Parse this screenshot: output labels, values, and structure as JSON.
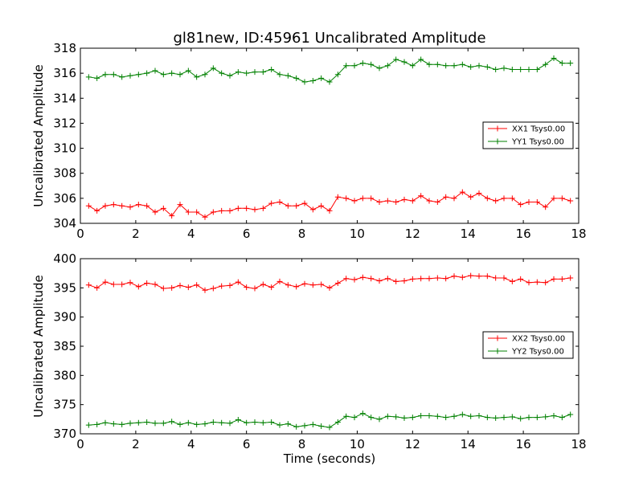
{
  "figure": {
    "title": "gl81new, ID:45961 Uncalibrated Amplitude",
    "xlabel": "Time (seconds)"
  },
  "chart_data": [
    {
      "type": "line",
      "ylabel": "Uncalibrated Amplitude",
      "xlim": [
        0,
        18
      ],
      "ylim": [
        304,
        318
      ],
      "xticks": [
        0,
        2,
        4,
        6,
        8,
        10,
        12,
        14,
        16,
        18
      ],
      "yticks": [
        304,
        306,
        308,
        310,
        312,
        314,
        316,
        318
      ],
      "grid": false,
      "legend_position": "center-right",
      "x": [
        0.3,
        0.6,
        0.9,
        1.2,
        1.5,
        1.8,
        2.1,
        2.4,
        2.7,
        3.0,
        3.3,
        3.6,
        3.9,
        4.2,
        4.5,
        4.8,
        5.1,
        5.4,
        5.7,
        6.0,
        6.3,
        6.6,
        6.9,
        7.2,
        7.5,
        7.8,
        8.1,
        8.4,
        8.7,
        9.0,
        9.3,
        9.6,
        9.9,
        10.2,
        10.5,
        10.8,
        11.1,
        11.4,
        11.7,
        12.0,
        12.3,
        12.6,
        12.9,
        13.2,
        13.5,
        13.8,
        14.1,
        14.4,
        14.7,
        15.0,
        15.3,
        15.6,
        15.9,
        16.2,
        16.5,
        16.8,
        17.1,
        17.4,
        17.7
      ],
      "series": [
        {
          "name": "XX1 Tsys0.00",
          "color": "#ff0000",
          "values": [
            305.4,
            305.0,
            305.4,
            305.5,
            305.4,
            305.3,
            305.5,
            305.4,
            304.9,
            305.2,
            304.6,
            305.5,
            304.9,
            304.9,
            304.5,
            304.9,
            305.0,
            305.0,
            305.2,
            305.2,
            305.1,
            305.2,
            305.6,
            305.7,
            305.4,
            305.4,
            305.6,
            305.1,
            305.4,
            305.0,
            306.1,
            306.0,
            305.8,
            306.0,
            306.0,
            305.7,
            305.8,
            305.7,
            305.9,
            305.8,
            306.2,
            305.8,
            305.7,
            306.1,
            306.0,
            306.5,
            306.1,
            306.4,
            306.0,
            305.8,
            306.0,
            306.0,
            305.5,
            305.7,
            305.7,
            305.3,
            306.0,
            306.0,
            305.8
          ]
        },
        {
          "name": "YY1 Tsys0.00",
          "color": "#008000",
          "values": [
            315.7,
            315.6,
            315.9,
            315.9,
            315.7,
            315.8,
            315.9,
            316.0,
            316.2,
            315.9,
            316.0,
            315.9,
            316.2,
            315.7,
            315.9,
            316.4,
            316.0,
            315.8,
            316.1,
            316.0,
            316.1,
            316.1,
            316.3,
            315.9,
            315.8,
            315.6,
            315.3,
            315.4,
            315.6,
            315.3,
            315.9,
            316.6,
            316.6,
            316.8,
            316.7,
            316.4,
            316.6,
            317.1,
            316.9,
            316.6,
            317.1,
            316.7,
            316.7,
            316.6,
            316.6,
            316.7,
            316.5,
            316.6,
            316.5,
            316.3,
            316.4,
            316.3,
            316.3,
            316.3,
            316.3,
            316.7,
            317.2,
            316.8,
            316.8
          ]
        }
      ]
    },
    {
      "type": "line",
      "ylabel": "Uncalibrated Amplitude",
      "xlabel": "Time (seconds)",
      "xlim": [
        0,
        18
      ],
      "ylim": [
        370,
        400
      ],
      "xticks": [
        0,
        2,
        4,
        6,
        8,
        10,
        12,
        14,
        16,
        18
      ],
      "yticks": [
        370,
        375,
        380,
        385,
        390,
        395,
        400
      ],
      "grid": false,
      "legend_position": "center-right",
      "x": [
        0.3,
        0.6,
        0.9,
        1.2,
        1.5,
        1.8,
        2.1,
        2.4,
        2.7,
        3.0,
        3.3,
        3.6,
        3.9,
        4.2,
        4.5,
        4.8,
        5.1,
        5.4,
        5.7,
        6.0,
        6.3,
        6.6,
        6.9,
        7.2,
        7.5,
        7.8,
        8.1,
        8.4,
        8.7,
        9.0,
        9.3,
        9.6,
        9.9,
        10.2,
        10.5,
        10.8,
        11.1,
        11.4,
        11.7,
        12.0,
        12.3,
        12.6,
        12.9,
        13.2,
        13.5,
        13.8,
        14.1,
        14.4,
        14.7,
        15.0,
        15.3,
        15.6,
        15.9,
        16.2,
        16.5,
        16.8,
        17.1,
        17.4,
        17.7
      ],
      "series": [
        {
          "name": "XX2 Tsys0.00",
          "color": "#ff0000",
          "values": [
            395.5,
            395.0,
            396.0,
            395.6,
            395.6,
            395.9,
            395.2,
            395.8,
            395.6,
            394.9,
            395.0,
            395.4,
            395.1,
            395.5,
            394.6,
            394.9,
            395.3,
            395.4,
            396.0,
            395.1,
            394.9,
            395.6,
            395.1,
            396.1,
            395.5,
            395.2,
            395.7,
            395.5,
            395.6,
            395.0,
            395.8,
            396.6,
            396.4,
            396.8,
            396.6,
            396.2,
            396.6,
            396.1,
            396.2,
            396.5,
            396.6,
            396.6,
            396.7,
            396.6,
            397.0,
            396.8,
            397.1,
            397.0,
            397.0,
            396.7,
            396.7,
            396.1,
            396.5,
            395.9,
            396.0,
            395.9,
            396.5,
            396.5,
            396.7
          ]
        },
        {
          "name": "YY2 Tsys0.00",
          "color": "#008000",
          "values": [
            371.5,
            371.6,
            371.9,
            371.7,
            371.6,
            371.8,
            371.9,
            372.0,
            371.8,
            371.8,
            372.1,
            371.6,
            371.9,
            371.6,
            371.7,
            372.0,
            371.9,
            371.8,
            372.4,
            371.9,
            372.0,
            371.9,
            372.0,
            371.5,
            371.7,
            371.2,
            371.4,
            371.6,
            371.3,
            371.1,
            372.0,
            373.0,
            372.8,
            373.5,
            372.8,
            372.5,
            373.0,
            372.9,
            372.7,
            372.8,
            373.1,
            373.1,
            373.0,
            372.8,
            373.0,
            373.3,
            373.0,
            373.1,
            372.8,
            372.7,
            372.8,
            372.9,
            372.6,
            372.8,
            372.8,
            372.9,
            373.1,
            372.8,
            373.3
          ]
        }
      ]
    }
  ]
}
